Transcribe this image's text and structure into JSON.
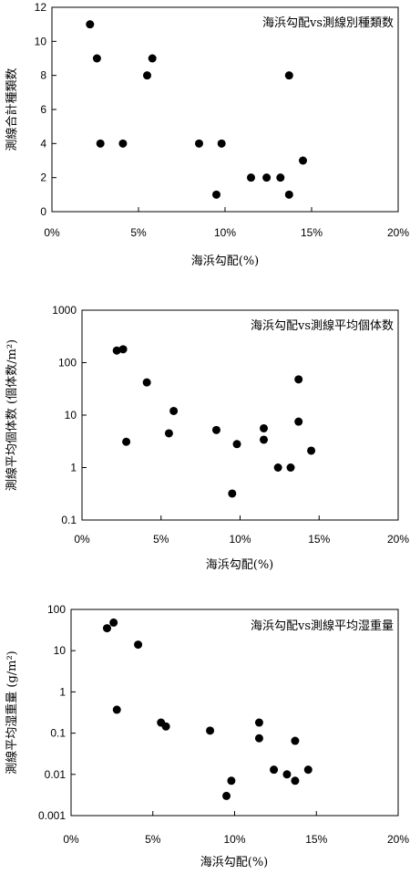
{
  "chart_data": [
    {
      "type": "scatter",
      "title": "海浜勾配vs測線別種類数",
      "xlabel": "海浜勾配(%)",
      "ylabel": "測線合計種類数",
      "x_tick_labels": [
        "0%",
        "5%",
        "10%",
        "15%",
        "20%"
      ],
      "x_ticks": [
        0,
        0.05,
        0.1,
        0.15,
        0.2
      ],
      "y_tick_labels": [
        "0",
        "2",
        "4",
        "6",
        "8",
        "10",
        "12"
      ],
      "y_ticks": [
        0,
        2,
        4,
        6,
        8,
        10,
        12
      ],
      "xlim": [
        0,
        0.2
      ],
      "ylim": [
        0,
        12
      ],
      "yscale": "linear",
      "grid": false,
      "points": [
        {
          "x": 0.022,
          "y": 11
        },
        {
          "x": 0.026,
          "y": 9
        },
        {
          "x": 0.028,
          "y": 4
        },
        {
          "x": 0.041,
          "y": 4
        },
        {
          "x": 0.055,
          "y": 8
        },
        {
          "x": 0.058,
          "y": 9
        },
        {
          "x": 0.085,
          "y": 4
        },
        {
          "x": 0.095,
          "y": 1
        },
        {
          "x": 0.098,
          "y": 4
        },
        {
          "x": 0.115,
          "y": 2
        },
        {
          "x": 0.124,
          "y": 2
        },
        {
          "x": 0.132,
          "y": 2
        },
        {
          "x": 0.137,
          "y": 8
        },
        {
          "x": 0.137,
          "y": 1
        },
        {
          "x": 0.145,
          "y": 3
        }
      ]
    },
    {
      "type": "scatter",
      "title": "海浜勾配vs測線平均個体数",
      "xlabel": "海浜勾配(%)",
      "ylabel": "測線平均個体数 (個体数/m²)",
      "x_tick_labels": [
        "0%",
        "5%",
        "10%",
        "15%",
        "20%"
      ],
      "x_ticks": [
        0,
        0.05,
        0.1,
        0.15,
        0.2
      ],
      "y_tick_labels": [
        "0.1",
        "1",
        "10",
        "100",
        "1000"
      ],
      "y_ticks": [
        0.1,
        1,
        10,
        100,
        1000
      ],
      "xlim": [
        0,
        0.2
      ],
      "ylim": [
        0.1,
        1000
      ],
      "yscale": "log",
      "grid": false,
      "points": [
        {
          "x": 0.022,
          "y": 170
        },
        {
          "x": 0.026,
          "y": 180
        },
        {
          "x": 0.028,
          "y": 3.1
        },
        {
          "x": 0.041,
          "y": 42
        },
        {
          "x": 0.055,
          "y": 4.5
        },
        {
          "x": 0.058,
          "y": 12
        },
        {
          "x": 0.085,
          "y": 5.2
        },
        {
          "x": 0.095,
          "y": 0.32
        },
        {
          "x": 0.098,
          "y": 2.8
        },
        {
          "x": 0.115,
          "y": 3.4
        },
        {
          "x": 0.115,
          "y": 5.6
        },
        {
          "x": 0.124,
          "y": 1.0
        },
        {
          "x": 0.132,
          "y": 1.0
        },
        {
          "x": 0.137,
          "y": 48
        },
        {
          "x": 0.137,
          "y": 7.5
        },
        {
          "x": 0.145,
          "y": 2.1
        }
      ]
    },
    {
      "type": "scatter",
      "title": "海浜勾配vs測線平均湿重量",
      "xlabel": "海浜勾配(%)",
      "ylabel": "測線平均湿重量 (g/m²)",
      "x_tick_labels": [
        "0%",
        "5%",
        "10%",
        "15%",
        "20%"
      ],
      "x_ticks": [
        0,
        0.05,
        0.1,
        0.15,
        0.2
      ],
      "y_tick_labels": [
        "0.001",
        "0.01",
        "0.1",
        "1",
        "10",
        "100"
      ],
      "y_ticks": [
        0.001,
        0.01,
        0.1,
        1,
        10,
        100
      ],
      "xlim": [
        0,
        0.2
      ],
      "ylim": [
        0.001,
        100
      ],
      "yscale": "log",
      "grid": false,
      "points": [
        {
          "x": 0.022,
          "y": 35
        },
        {
          "x": 0.026,
          "y": 48
        },
        {
          "x": 0.028,
          "y": 0.37
        },
        {
          "x": 0.041,
          "y": 14
        },
        {
          "x": 0.055,
          "y": 0.18
        },
        {
          "x": 0.058,
          "y": 0.145
        },
        {
          "x": 0.085,
          "y": 0.115
        },
        {
          "x": 0.095,
          "y": 0.003
        },
        {
          "x": 0.098,
          "y": 0.007
        },
        {
          "x": 0.115,
          "y": 0.18
        },
        {
          "x": 0.115,
          "y": 0.075
        },
        {
          "x": 0.124,
          "y": 0.013
        },
        {
          "x": 0.132,
          "y": 0.01
        },
        {
          "x": 0.137,
          "y": 0.065
        },
        {
          "x": 0.137,
          "y": 0.007
        },
        {
          "x": 0.145,
          "y": 0.013
        }
      ]
    }
  ]
}
